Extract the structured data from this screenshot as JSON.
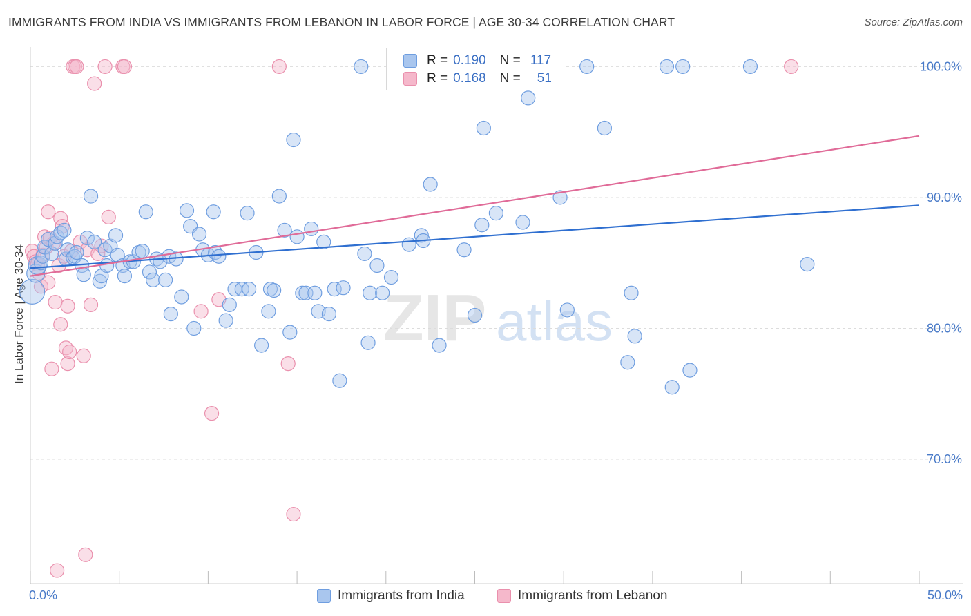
{
  "header": {
    "title": "IMMIGRANTS FROM INDIA VS IMMIGRANTS FROM LEBANON IN LABOR FORCE | AGE 30-34 CORRELATION CHART",
    "source": "Source: ZipAtlas.com"
  },
  "legend": {
    "india": {
      "r_label": "R =",
      "r_value": "0.190",
      "n_label": "N =",
      "n_value": "117"
    },
    "lebanon": {
      "r_label": "R =",
      "r_value": "0.168",
      "n_label": "N =",
      "n_value": "51"
    }
  },
  "watermark": {
    "zip": "ZIP",
    "atlas": "atlas"
  },
  "colors": {
    "india_fill": "#a9c6ee",
    "india_stroke": "#6f9ee0",
    "india_line": "#2f6fd0",
    "lebanon_fill": "#f5b8cb",
    "lebanon_stroke": "#ea90ad",
    "lebanon_line": "#e06b98",
    "grid": "#dcdcdc",
    "axis_text": "#4a7bc8"
  },
  "chart_data": {
    "type": "scatter",
    "title": "IMMIGRANTS FROM INDIA VS IMMIGRANTS FROM LEBANON IN LABOR FORCE | AGE 30-34 CORRELATION CHART",
    "xlabel": "",
    "ylabel": "In Labor Force | Age 30-34",
    "xlim": [
      0,
      50
    ],
    "ylim": [
      60.5,
      101.5
    ],
    "x_tick_labels": [
      "0.0%",
      "50.0%"
    ],
    "y_ticks": [
      70,
      80,
      90,
      100
    ],
    "y_tick_labels": [
      "70.0%",
      "80.0%",
      "90.0%",
      "100.0%"
    ],
    "grid": true,
    "legend_position": "bottom",
    "series": [
      {
        "name": "Immigrants from India",
        "R": 0.19,
        "N": 117,
        "trend": {
          "x": [
            0,
            50
          ],
          "y": [
            84.6,
            89.4
          ]
        },
        "points": [
          [
            0.1,
            82.8
          ],
          [
            0.3,
            84.2
          ],
          [
            0.4,
            84.8
          ],
          [
            0.6,
            85.0
          ],
          [
            0.7,
            85.5
          ],
          [
            0.8,
            86.2
          ],
          [
            1.0,
            86.8
          ],
          [
            1.2,
            85.7
          ],
          [
            1.4,
            86.5
          ],
          [
            1.5,
            87.0
          ],
          [
            1.7,
            87.3
          ],
          [
            1.9,
            87.5
          ],
          [
            2.0,
            85.3
          ],
          [
            2.1,
            86.0
          ],
          [
            2.4,
            85.4
          ],
          [
            2.5,
            85.5
          ],
          [
            2.6,
            85.8
          ],
          [
            2.9,
            84.8
          ],
          [
            3.0,
            84.1
          ],
          [
            3.2,
            86.9
          ],
          [
            3.4,
            90.1
          ],
          [
            3.6,
            86.6
          ],
          [
            3.9,
            83.6
          ],
          [
            4.0,
            84.0
          ],
          [
            4.2,
            86.0
          ],
          [
            4.3,
            84.8
          ],
          [
            4.5,
            86.3
          ],
          [
            4.8,
            87.1
          ],
          [
            4.9,
            85.6
          ],
          [
            5.2,
            84.8
          ],
          [
            5.3,
            84.0
          ],
          [
            5.6,
            85.1
          ],
          [
            5.8,
            85.1
          ],
          [
            6.1,
            85.8
          ],
          [
            6.3,
            85.9
          ],
          [
            6.5,
            88.9
          ],
          [
            6.7,
            84.3
          ],
          [
            6.9,
            83.7
          ],
          [
            7.1,
            85.3
          ],
          [
            7.3,
            85.1
          ],
          [
            7.6,
            83.7
          ],
          [
            7.8,
            85.5
          ],
          [
            7.9,
            81.1
          ],
          [
            8.2,
            85.3
          ],
          [
            8.5,
            82.4
          ],
          [
            8.8,
            89.0
          ],
          [
            9.0,
            87.8
          ],
          [
            9.2,
            80.0
          ],
          [
            9.5,
            87.2
          ],
          [
            9.7,
            86.0
          ],
          [
            10.0,
            85.6
          ],
          [
            10.3,
            88.9
          ],
          [
            10.4,
            85.8
          ],
          [
            10.6,
            85.5
          ],
          [
            11.0,
            80.6
          ],
          [
            11.2,
            81.8
          ],
          [
            11.5,
            83.0
          ],
          [
            11.9,
            83.0
          ],
          [
            12.2,
            88.8
          ],
          [
            12.3,
            83.0
          ],
          [
            12.7,
            85.8
          ],
          [
            13.0,
            78.7
          ],
          [
            13.4,
            81.3
          ],
          [
            13.5,
            83.0
          ],
          [
            13.7,
            82.9
          ],
          [
            14.0,
            90.1
          ],
          [
            14.3,
            87.5
          ],
          [
            14.6,
            79.7
          ],
          [
            14.8,
            94.4
          ],
          [
            15.0,
            87.0
          ],
          [
            15.3,
            82.7
          ],
          [
            15.5,
            82.7
          ],
          [
            15.8,
            87.6
          ],
          [
            16.0,
            82.7
          ],
          [
            16.2,
            81.3
          ],
          [
            16.5,
            86.6
          ],
          [
            16.8,
            81.1
          ],
          [
            17.1,
            83.0
          ],
          [
            17.4,
            76.0
          ],
          [
            17.6,
            83.1
          ],
          [
            18.6,
            100.0
          ],
          [
            18.8,
            85.7
          ],
          [
            19.0,
            78.9
          ],
          [
            19.1,
            82.7
          ],
          [
            19.5,
            84.8
          ],
          [
            19.8,
            82.7
          ],
          [
            20.3,
            83.9
          ],
          [
            21.3,
            86.4
          ],
          [
            22.0,
            87.1
          ],
          [
            22.1,
            86.7
          ],
          [
            22.5,
            91.0
          ],
          [
            23.0,
            78.7
          ],
          [
            24.4,
            86.0
          ],
          [
            25.0,
            81.0
          ],
          [
            25.4,
            87.9
          ],
          [
            25.5,
            95.3
          ],
          [
            26.2,
            88.8
          ],
          [
            27.7,
            88.1
          ],
          [
            28.0,
            97.6
          ],
          [
            29.8,
            90.0
          ],
          [
            30.2,
            81.4
          ],
          [
            31.3,
            100.0
          ],
          [
            32.3,
            95.3
          ],
          [
            33.6,
            77.4
          ],
          [
            33.8,
            82.7
          ],
          [
            34.0,
            79.4
          ],
          [
            35.8,
            100.0
          ],
          [
            36.1,
            75.5
          ],
          [
            36.7,
            100.0
          ],
          [
            37.1,
            76.8
          ],
          [
            40.5,
            100.0
          ],
          [
            43.7,
            84.9
          ]
        ]
      },
      {
        "name": "Immigrants from Lebanon",
        "R": 0.168,
        "N": 51,
        "trend": {
          "x": [
            0,
            50
          ],
          "y": [
            84.0,
            94.7
          ]
        },
        "points": [
          [
            0.1,
            85.9
          ],
          [
            0.2,
            85.5
          ],
          [
            0.3,
            85.1
          ],
          [
            0.4,
            84.9
          ],
          [
            0.5,
            84.2
          ],
          [
            0.6,
            83.2
          ],
          [
            0.7,
            85.6
          ],
          [
            0.8,
            87.0
          ],
          [
            0.9,
            86.2
          ],
          [
            1.0,
            83.5
          ],
          [
            1.0,
            88.9
          ],
          [
            1.1,
            86.9
          ],
          [
            1.2,
            76.9
          ],
          [
            1.3,
            86.5
          ],
          [
            1.4,
            82.0
          ],
          [
            1.5,
            61.5
          ],
          [
            1.6,
            84.8
          ],
          [
            1.7,
            88.4
          ],
          [
            1.7,
            80.3
          ],
          [
            1.8,
            87.8
          ],
          [
            1.9,
            85.5
          ],
          [
            2.0,
            78.5
          ],
          [
            2.1,
            81.7
          ],
          [
            2.1,
            77.3
          ],
          [
            2.2,
            78.2
          ],
          [
            2.3,
            85.9
          ],
          [
            2.4,
            100.0
          ],
          [
            2.5,
            100.0
          ],
          [
            2.6,
            100.0
          ],
          [
            2.8,
            86.6
          ],
          [
            3.0,
            77.9
          ],
          [
            3.1,
            62.7
          ],
          [
            3.2,
            86.0
          ],
          [
            3.4,
            81.8
          ],
          [
            3.6,
            98.7
          ],
          [
            3.8,
            85.7
          ],
          [
            4.0,
            86.3
          ],
          [
            4.2,
            100.0
          ],
          [
            4.4,
            88.5
          ],
          [
            5.2,
            100.0
          ],
          [
            5.3,
            100.0
          ],
          [
            9.6,
            81.3
          ],
          [
            10.2,
            73.5
          ],
          [
            10.6,
            82.2
          ],
          [
            14.0,
            100.0
          ],
          [
            14.5,
            77.3
          ],
          [
            14.8,
            65.8
          ],
          [
            42.8,
            100.0
          ]
        ]
      }
    ]
  }
}
